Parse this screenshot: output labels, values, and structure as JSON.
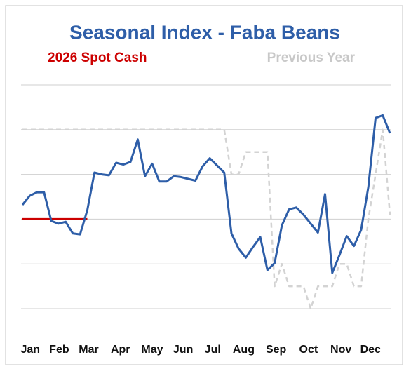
{
  "chart_data": {
    "type": "line",
    "title": "Seasonal Index - Faba Beans",
    "x": [
      1,
      2,
      3,
      4,
      5,
      6,
      7,
      8,
      9,
      10,
      11,
      12,
      13,
      14,
      15,
      16,
      17,
      18,
      19,
      20,
      21,
      22,
      23,
      24,
      25,
      26,
      27,
      28,
      29,
      30,
      31,
      32,
      33,
      34,
      35,
      36,
      37,
      38,
      39,
      40,
      41,
      42,
      43,
      44,
      45,
      46,
      47,
      48,
      49,
      50,
      51,
      52
    ],
    "xlim": [
      1,
      52
    ],
    "xticks": [
      {
        "value": 2.1,
        "label": "Jan"
      },
      {
        "value": 6.1,
        "label": "Feb"
      },
      {
        "value": 10.2,
        "label": "Mar"
      },
      {
        "value": 14.6,
        "label": "Apr"
      },
      {
        "value": 19.0,
        "label": "May"
      },
      {
        "value": 23.3,
        "label": "Jun"
      },
      {
        "value": 27.4,
        "label": "Jul"
      },
      {
        "value": 31.7,
        "label": "Aug"
      },
      {
        "value": 36.2,
        "label": "Sep"
      },
      {
        "value": 40.7,
        "label": "Oct"
      },
      {
        "value": 45.2,
        "label": "Nov"
      },
      {
        "value": 49.3,
        "label": "Dec"
      }
    ],
    "ylim": [
      87.5,
      116
    ],
    "yticks": [
      90,
      95,
      100,
      105,
      110,
      115
    ],
    "grid": true,
    "series": [
      {
        "color": "#2e5ea8",
        "dashed": false,
        "values": [
          101.6,
          102.6,
          103.0,
          103.0,
          99.8,
          99.5,
          99.7,
          98.4,
          98.3,
          101.0,
          105.2,
          105.0,
          104.9,
          106.3,
          106.1,
          106.4,
          108.9,
          104.8,
          106.2,
          104.2,
          104.2,
          104.8,
          104.7,
          104.5,
          104.3,
          105.9,
          106.8,
          106.0,
          105.2,
          98.4,
          96.7,
          95.7,
          96.9,
          98.0,
          94.3,
          95.1,
          99.3,
          101.1,
          101.3,
          100.5,
          99.5,
          98.5,
          102.8,
          94.0,
          96.0,
          98.1,
          97.0,
          98.8,
          103.6,
          111.3,
          111.6,
          109.6
        ]
      },
      {
        "name": "2026 Spot Cash",
        "color": "#cc0000",
        "dashed": false,
        "values": [
          100,
          100,
          100,
          100,
          100,
          100,
          100,
          100,
          100,
          100,
          null,
          null,
          null,
          null,
          null,
          null,
          null,
          null,
          null,
          null,
          null,
          null,
          null,
          null,
          null,
          null,
          null,
          null,
          null,
          null,
          null,
          null,
          null,
          null,
          null,
          null,
          null,
          null,
          null,
          null,
          null,
          null,
          null,
          null,
          null,
          null,
          null,
          null,
          null,
          null,
          null,
          null
        ]
      },
      {
        "name": "Previous Year",
        "color": "#d3d3d3",
        "dashed": true,
        "values": [
          110,
          110,
          110,
          110,
          110,
          110,
          110,
          110,
          110,
          110,
          110,
          110,
          110,
          110,
          110,
          110,
          110,
          110,
          110,
          110,
          110,
          110,
          110,
          110,
          110,
          110,
          110,
          110,
          110,
          105,
          105,
          107.5,
          107.5,
          107.5,
          107.5,
          92.5,
          95,
          92.5,
          92.5,
          92.5,
          90,
          92.5,
          92.5,
          92.5,
          95,
          95,
          92.5,
          92.5,
          100,
          105,
          110,
          100.5
        ]
      }
    ]
  }
}
